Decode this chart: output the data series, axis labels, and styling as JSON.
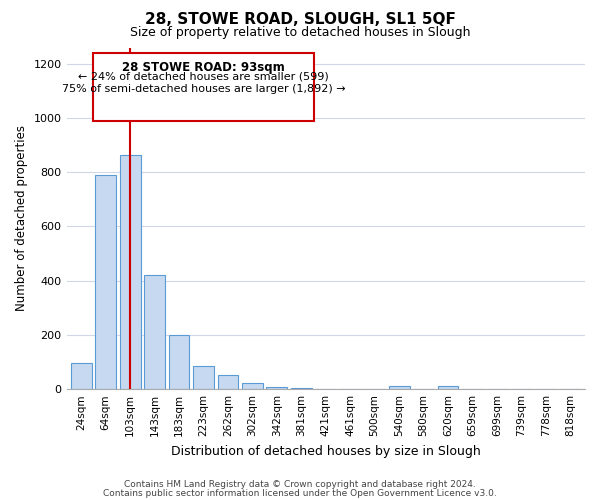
{
  "title": "28, STOWE ROAD, SLOUGH, SL1 5QF",
  "subtitle": "Size of property relative to detached houses in Slough",
  "xlabel": "Distribution of detached houses by size in Slough",
  "ylabel": "Number of detached properties",
  "bar_labels": [
    "24sqm",
    "64sqm",
    "103sqm",
    "143sqm",
    "183sqm",
    "223sqm",
    "262sqm",
    "302sqm",
    "342sqm",
    "381sqm",
    "421sqm",
    "461sqm",
    "500sqm",
    "540sqm",
    "580sqm",
    "620sqm",
    "659sqm",
    "699sqm",
    "739sqm",
    "778sqm",
    "818sqm"
  ],
  "bar_values": [
    95,
    790,
    865,
    420,
    200,
    85,
    52,
    22,
    8,
    3,
    0,
    0,
    0,
    10,
    0,
    10,
    0,
    0,
    0,
    0,
    0
  ],
  "bar_color": "#c6d9f0",
  "bar_edge_color": "#5b9bd5",
  "vline_x": 2,
  "vline_color": "#cc0000",
  "ylim": [
    0,
    1260
  ],
  "yticks": [
    0,
    200,
    400,
    600,
    800,
    1000,
    1200
  ],
  "annotation_title": "28 STOWE ROAD: 93sqm",
  "annotation_line1": "← 24% of detached houses are smaller (599)",
  "annotation_line2": "75% of semi-detached houses are larger (1,892) →",
  "annotation_box_color": "#ffffff",
  "annotation_box_edge": "#cc0000",
  "footer_line1": "Contains HM Land Registry data © Crown copyright and database right 2024.",
  "footer_line2": "Contains public sector information licensed under the Open Government Licence v3.0.",
  "background_color": "#ffffff",
  "grid_color": "#d0d8e8"
}
